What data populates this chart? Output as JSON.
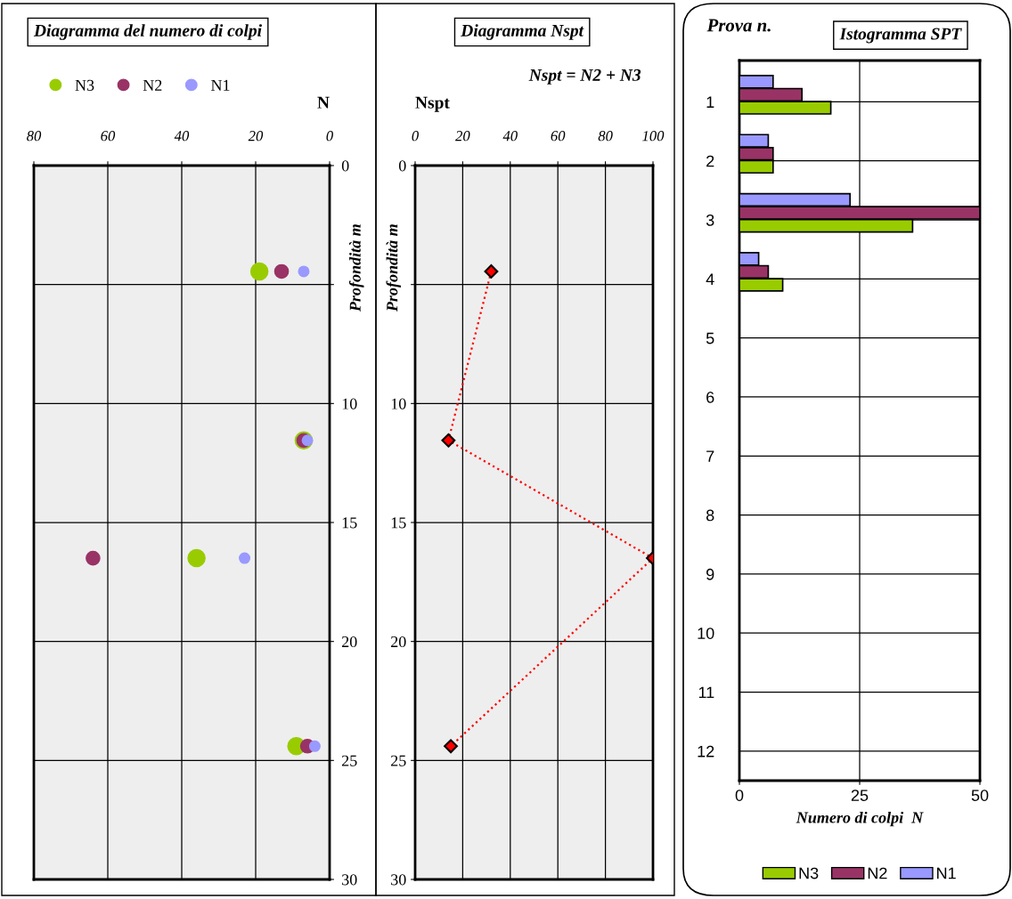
{
  "chart_data": [
    {
      "type": "scatter",
      "title": "Diagramma del numero di colpi",
      "xlabel": "N",
      "ylabel": "Profondità m",
      "xlim": [
        80,
        0
      ],
      "xticks": [
        80,
        60,
        40,
        20,
        0
      ],
      "ylim": [
        30,
        0
      ],
      "yticks": [
        0,
        {
          "value": 5,
          "label": null
        },
        10,
        15,
        20,
        25,
        30
      ],
      "grid": true,
      "legend": "top left",
      "marker": "circle",
      "series": [
        {
          "name": "N3",
          "color": "#99cc00",
          "x": [
            19,
            7,
            36,
            9
          ],
          "values": [
            4.45,
            11.55,
            16.5,
            24.4
          ]
        },
        {
          "name": "N2",
          "color": "#993366",
          "x": [
            13,
            7,
            64,
            6
          ],
          "values": [
            4.45,
            11.55,
            16.5,
            24.4
          ]
        },
        {
          "name": "N1",
          "color": "#9999ff",
          "x": [
            7,
            6,
            23,
            4
          ],
          "values": [
            4.45,
            11.55,
            16.5,
            24.4
          ]
        }
      ]
    },
    {
      "type": "line",
      "title": "Diagramma Nspt",
      "xlabel": "Nspt",
      "ylabel": "Profondità m",
      "annotations": [
        "Nspt = N2 + N3"
      ],
      "xlim": [
        0,
        100
      ],
      "xticks": [
        0,
        20,
        40,
        60,
        80,
        100
      ],
      "ylim": [
        30,
        0
      ],
      "yticks": [
        0,
        {
          "value": 5,
          "label": null
        },
        10,
        15,
        20,
        25,
        30
      ],
      "grid": true,
      "marker": "diamond",
      "line_style": "dotted",
      "series": [
        {
          "color": "#ff0000",
          "x": [
            32,
            14,
            100,
            15
          ],
          "values": [
            4.45,
            11.55,
            16.5,
            24.4
          ]
        }
      ]
    },
    {
      "type": "bar",
      "orientation": "horizontal",
      "title": "Istogramma SPT",
      "xlabel": "Numero di colpi  N",
      "ylabel": "Prova n.",
      "categories": [
        "1",
        "2",
        "3",
        "4",
        "5",
        "6",
        "7",
        "8",
        "9",
        "10",
        "11",
        "12"
      ],
      "xlim": [
        0,
        50
      ],
      "xticks": [
        0,
        25,
        50
      ],
      "grid": true,
      "legend": "bottom",
      "series": [
        {
          "name": "N3",
          "color": "#99cc00",
          "values": [
            19,
            7,
            36,
            9,
            null,
            null,
            null,
            null,
            null,
            null,
            null,
            null
          ]
        },
        {
          "name": "N2",
          "color": "#993366",
          "values": [
            13,
            7,
            50,
            6,
            null,
            null,
            null,
            null,
            null,
            null,
            null,
            null
          ]
        },
        {
          "name": "N1",
          "color": "#9999ff",
          "values": [
            7,
            6,
            23,
            4,
            null,
            null,
            null,
            null,
            null,
            null,
            null,
            null
          ]
        }
      ]
    }
  ]
}
